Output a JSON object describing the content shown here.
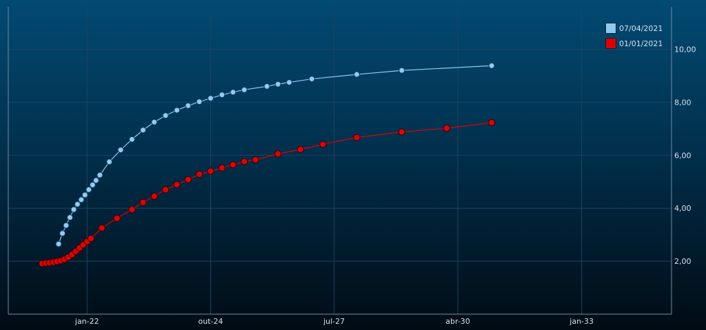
{
  "chart_data": {
    "type": "line",
    "x_ticks": [
      "jan-22",
      "out-24",
      "jul-27",
      "abr-30",
      "jan-33"
    ],
    "y_ticks": [
      "2,00",
      "4,00",
      "6,00",
      "8,00",
      "10,00"
    ],
    "xlim": [
      "2020-04-01",
      "2035-01-01"
    ],
    "ylim": [
      0,
      11.6
    ],
    "x_tick_dates": [
      "2022-01-01",
      "2024-10-01",
      "2027-07-01",
      "2030-04-01",
      "2033-01-01"
    ],
    "y_tick_values": [
      2,
      4,
      6,
      8,
      10
    ],
    "grid": true,
    "legend_position": "top-right",
    "series": [
      {
        "name": "07/04/2021",
        "color": "#8ecbf2",
        "points": [
          [
            "2021-05-15",
            2.65
          ],
          [
            "2021-06-15",
            3.05
          ],
          [
            "2021-07-15",
            3.35
          ],
          [
            "2021-08-15",
            3.65
          ],
          [
            "2021-09-15",
            3.95
          ],
          [
            "2021-10-15",
            4.15
          ],
          [
            "2021-11-15",
            4.32
          ],
          [
            "2021-12-15",
            4.5
          ],
          [
            "2022-01-15",
            4.7
          ],
          [
            "2022-02-15",
            4.88
          ],
          [
            "2022-03-15",
            5.05
          ],
          [
            "2022-04-15",
            5.25
          ],
          [
            "2022-07-01",
            5.75
          ],
          [
            "2022-10-01",
            6.2
          ],
          [
            "2023-01-01",
            6.6
          ],
          [
            "2023-04-01",
            6.95
          ],
          [
            "2023-07-01",
            7.25
          ],
          [
            "2023-10-01",
            7.5
          ],
          [
            "2024-01-01",
            7.7
          ],
          [
            "2024-04-01",
            7.87
          ],
          [
            "2024-07-01",
            8.02
          ],
          [
            "2024-10-01",
            8.15
          ],
          [
            "2025-01-01",
            8.28
          ],
          [
            "2025-04-01",
            8.38
          ],
          [
            "2025-07-01",
            8.47
          ],
          [
            "2026-01-01",
            8.6
          ],
          [
            "2026-04-01",
            8.68
          ],
          [
            "2026-07-01",
            8.75
          ],
          [
            "2027-01-01",
            8.88
          ],
          [
            "2028-01-01",
            9.05
          ],
          [
            "2029-01-01",
            9.2
          ],
          [
            "2031-01-01",
            9.38
          ]
        ]
      },
      {
        "name": "01/01/2021",
        "color": "#e00000",
        "points": [
          [
            "2021-01-01",
            1.91
          ],
          [
            "2021-02-01",
            1.93
          ],
          [
            "2021-03-01",
            1.94
          ],
          [
            "2021-04-01",
            1.96
          ],
          [
            "2021-05-01",
            1.99
          ],
          [
            "2021-06-01",
            2.02
          ],
          [
            "2021-07-01",
            2.07
          ],
          [
            "2021-08-01",
            2.15
          ],
          [
            "2021-09-01",
            2.25
          ],
          [
            "2021-10-01",
            2.37
          ],
          [
            "2021-11-01",
            2.5
          ],
          [
            "2021-12-01",
            2.62
          ],
          [
            "2022-01-01",
            2.74
          ],
          [
            "2022-02-01",
            2.86
          ],
          [
            "2022-05-01",
            3.25
          ],
          [
            "2022-09-01",
            3.62
          ],
          [
            "2023-01-01",
            3.95
          ],
          [
            "2023-04-01",
            4.22
          ],
          [
            "2023-07-01",
            4.45
          ],
          [
            "2023-10-01",
            4.7
          ],
          [
            "2024-01-01",
            4.89
          ],
          [
            "2024-04-01",
            5.08
          ],
          [
            "2024-07-01",
            5.28
          ],
          [
            "2024-10-01",
            5.4
          ],
          [
            "2025-01-01",
            5.52
          ],
          [
            "2025-04-01",
            5.64
          ],
          [
            "2025-07-01",
            5.76
          ],
          [
            "2025-10-01",
            5.83
          ],
          [
            "2026-04-01",
            6.05
          ],
          [
            "2026-10-01",
            6.22
          ],
          [
            "2027-04-01",
            6.41
          ],
          [
            "2028-01-01",
            6.67
          ],
          [
            "2029-01-01",
            6.88
          ],
          [
            "2030-01-01",
            7.02
          ],
          [
            "2031-01-01",
            7.23
          ]
        ]
      }
    ]
  }
}
